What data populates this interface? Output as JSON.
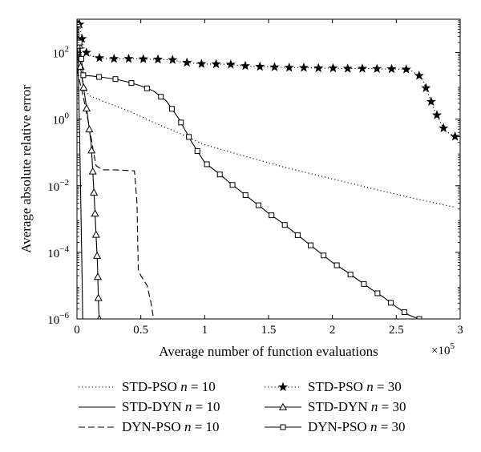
{
  "chart_data": {
    "type": "line",
    "xlabel": "Average number of function evaluations",
    "ylabel": "Average absolute relative error",
    "x_multiplier_label": "×10",
    "x_multiplier_exp": "5",
    "xlim": [
      0,
      300000
    ],
    "ylim": [
      1e-06,
      1000
    ],
    "yscale": "log",
    "grid": false,
    "legend_position": "bottom",
    "x_ticks": [
      {
        "value": 0,
        "label": "0"
      },
      {
        "value": 50000,
        "label": "0.5"
      },
      {
        "value": 100000,
        "label": "1"
      },
      {
        "value": 150000,
        "label": "1.5"
      },
      {
        "value": 200000,
        "label": "2"
      },
      {
        "value": 250000,
        "label": "2.5"
      },
      {
        "value": 300000,
        "label": "3"
      }
    ],
    "y_ticks": [
      {
        "value": 1e-06,
        "base": "10",
        "exp": "−6"
      },
      {
        "value": 0.0001,
        "base": "10",
        "exp": "−4"
      },
      {
        "value": 0.01,
        "base": "10",
        "exp": "−2"
      },
      {
        "value": 1,
        "base": "10",
        "exp": "0"
      },
      {
        "value": 100,
        "base": "10",
        "exp": "2"
      }
    ],
    "series": [
      {
        "name_prefix": "STD-PSO ",
        "name_var": "n",
        "name_suffix": " = 10",
        "line": "dotted",
        "marker": "none",
        "points": [
          [
            0,
            900
          ],
          [
            1500,
            100
          ],
          [
            3000,
            30
          ],
          [
            6000,
            8
          ],
          [
            10000,
            5
          ],
          [
            20000,
            3.5
          ],
          [
            40000,
            1.8
          ],
          [
            60000,
            0.8
          ],
          [
            80000,
            0.38
          ],
          [
            100000,
            0.17
          ],
          [
            130000,
            0.08
          ],
          [
            160000,
            0.038
          ],
          [
            200000,
            0.016
          ],
          [
            240000,
            0.0068
          ],
          [
            270000,
            0.0037
          ],
          [
            295000,
            0.0023
          ]
        ]
      },
      {
        "name_prefix": "STD-DYN ",
        "name_var": "n",
        "name_suffix": " = 10",
        "line": "solid",
        "marker": "none",
        "points": [
          [
            0,
            700
          ],
          [
            1000,
            30
          ],
          [
            2000,
            0.5
          ],
          [
            3000,
            0.003
          ],
          [
            4000,
            2e-05
          ],
          [
            4500,
            1e-06
          ]
        ]
      },
      {
        "name_prefix": "DYN-PSO ",
        "name_var": "n",
        "name_suffix": " = 10",
        "line": "dashed",
        "marker": "none",
        "points": [
          [
            0,
            30
          ],
          [
            3000,
            10
          ],
          [
            6000,
            3
          ],
          [
            10000,
            0.5
          ],
          [
            13000,
            0.1
          ],
          [
            15000,
            0.04
          ],
          [
            20000,
            0.03
          ],
          [
            30000,
            0.03
          ],
          [
            45000,
            0.028
          ],
          [
            47000,
            0.003
          ],
          [
            48000,
            3e-05
          ],
          [
            50000,
            2e-05
          ],
          [
            55000,
            1e-05
          ],
          [
            58000,
            3e-06
          ],
          [
            60000,
            1e-06
          ]
        ]
      },
      {
        "name_prefix": "STD-PSO ",
        "name_var": "n",
        "name_suffix": " = 30",
        "line": "dotted",
        "marker": "star",
        "points": [
          [
            2000,
            700
          ],
          [
            5000,
            150
          ],
          [
            8000,
            90
          ],
          [
            15000,
            70
          ],
          [
            25000,
            65
          ],
          [
            35000,
            65
          ],
          [
            45000,
            65
          ],
          [
            55000,
            63
          ],
          [
            65000,
            62
          ],
          [
            75000,
            60
          ],
          [
            82000,
            52
          ],
          [
            90000,
            48
          ],
          [
            100000,
            45
          ],
          [
            110000,
            45
          ],
          [
            120000,
            44
          ],
          [
            130000,
            40
          ],
          [
            140000,
            38
          ],
          [
            150000,
            37
          ],
          [
            160000,
            36
          ],
          [
            170000,
            35
          ],
          [
            180000,
            35
          ],
          [
            190000,
            34
          ],
          [
            200000,
            34
          ],
          [
            210000,
            33
          ],
          [
            220000,
            33
          ],
          [
            230000,
            33
          ],
          [
            240000,
            32
          ],
          [
            250000,
            32
          ],
          [
            260000,
            31
          ],
          [
            270000,
            18
          ],
          [
            280000,
            1.8
          ],
          [
            288000,
            0.45
          ],
          [
            296000,
            0.3
          ]
        ]
      },
      {
        "name_prefix": "STD-DYN ",
        "name_var": "n",
        "name_suffix": " = 30",
        "line": "solid",
        "marker": "triangle",
        "points": [
          [
            1000,
            700
          ],
          [
            3000,
            30
          ],
          [
            5000,
            10
          ],
          [
            7000,
            3
          ],
          [
            9000,
            0.8
          ],
          [
            11000,
            0.2
          ],
          [
            12000,
            0.05
          ],
          [
            13000,
            0.01
          ],
          [
            14000,
            0.002
          ],
          [
            15000,
            0.0003
          ],
          [
            16000,
            5e-05
          ],
          [
            16500,
            1e-05
          ],
          [
            17000,
            2e-06
          ],
          [
            17500,
            1e-06
          ]
        ]
      },
      {
        "name_prefix": "DYN-PSO ",
        "name_var": "n",
        "name_suffix": " = 30",
        "line": "solid",
        "marker": "square",
        "points": [
          [
            2000,
            200
          ],
          [
            5000,
            20
          ],
          [
            10000,
            20
          ],
          [
            20000,
            18
          ],
          [
            30000,
            16
          ],
          [
            40000,
            13
          ],
          [
            50000,
            10
          ],
          [
            60000,
            7
          ],
          [
            70000,
            3.5
          ],
          [
            80000,
            1
          ],
          [
            90000,
            0.2
          ],
          [
            100000,
            0.05
          ],
          [
            110000,
            0.025
          ],
          [
            120000,
            0.012
          ],
          [
            130000,
            0.006
          ],
          [
            140000,
            0.003
          ],
          [
            150000,
            0.0015
          ],
          [
            160000,
            0.0008
          ],
          [
            170000,
            0.0004
          ],
          [
            180000,
            0.0002
          ],
          [
            190000,
            0.0001
          ],
          [
            200000,
            5e-05
          ],
          [
            210000,
            2.8e-05
          ],
          [
            220000,
            1.5e-05
          ],
          [
            230000,
            8e-06
          ],
          [
            240000,
            4.5e-06
          ],
          [
            250000,
            2.3e-06
          ],
          [
            260000,
            1.3e-06
          ],
          [
            268000,
            1e-06
          ]
        ]
      }
    ]
  }
}
